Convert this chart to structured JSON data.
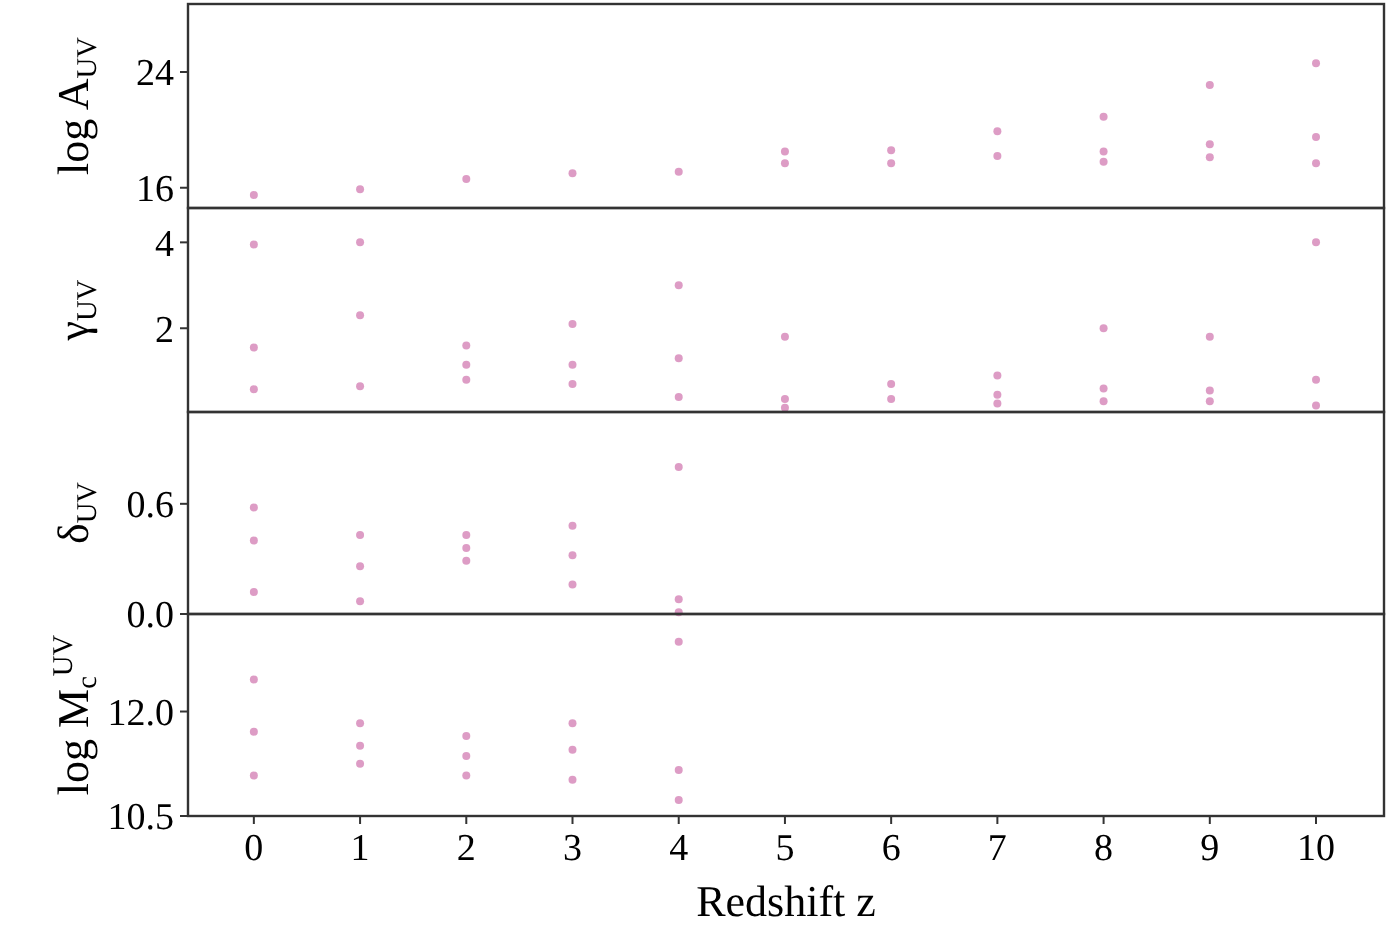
{
  "chart_data": [
    {
      "type": "scatter",
      "ylabel": "log A$_{UV}$",
      "xlim": [
        -0.62,
        10.64
      ],
      "ylim": [
        14.6,
        28.7
      ],
      "yticks": [
        16,
        24
      ],
      "tick_labels": "y",
      "grid": false,
      "marker": "circle",
      "series": [
        {
          "color": "#cf72ad",
          "x": [
            0,
            1,
            2,
            3,
            4,
            5,
            5,
            6,
            6,
            7,
            7,
            8,
            8,
            8,
            9,
            9,
            9,
            10,
            10,
            10
          ],
          "values": [
            15.5,
            15.9,
            16.6,
            17.0,
            17.1,
            17.7,
            18.5,
            17.7,
            18.6,
            18.2,
            19.9,
            17.8,
            18.5,
            20.9,
            18.1,
            19.0,
            23.1,
            17.7,
            19.5,
            24.6
          ]
        }
      ]
    },
    {
      "type": "scatter",
      "ylabel": "γ$_{UV}$",
      "xlim": [
        -0.62,
        10.64
      ],
      "ylim": [
        0.05,
        4.8
      ],
      "yticks": [
        2,
        4
      ],
      "tick_labels": "y",
      "grid": false,
      "marker": "circle",
      "series": [
        {
          "color": "#cf72ad",
          "x": [
            0,
            0,
            0,
            1,
            1,
            1,
            2,
            2,
            2,
            3,
            3,
            3,
            4,
            4,
            4,
            5,
            5,
            5,
            6,
            6,
            7,
            7,
            7,
            8,
            8,
            8,
            9,
            9,
            9,
            10,
            10,
            10
          ],
          "values": [
            0.58,
            1.55,
            3.95,
            0.65,
            2.3,
            4.0,
            0.8,
            1.15,
            1.6,
            0.7,
            1.15,
            2.1,
            0.4,
            1.3,
            3.0,
            0.15,
            0.35,
            1.8,
            0.35,
            0.7,
            0.25,
            0.45,
            0.9,
            0.3,
            0.6,
            2.0,
            0.3,
            0.55,
            1.8,
            0.2,
            0.8,
            4.0
          ]
        }
      ]
    },
    {
      "type": "scatter",
      "ylabel": "δ$_{UV}$",
      "xlim": [
        -0.62,
        10.64
      ],
      "ylim": [
        0,
        1.1
      ],
      "yticks": [
        {
          "value": 0,
          "label": "0.0"
        },
        0.6
      ],
      "tick_labels": "y",
      "grid": false,
      "marker": "circle",
      "series": [
        {
          "color": "#cf72ad",
          "x": [
            0,
            0,
            0,
            1,
            1,
            1,
            2,
            2,
            2,
            3,
            3,
            3,
            4,
            4,
            4
          ],
          "values": [
            0.12,
            0.4,
            0.58,
            0.07,
            0.26,
            0.43,
            0.29,
            0.36,
            0.43,
            0.16,
            0.32,
            0.48,
            0.01,
            0.08,
            0.8
          ]
        }
      ]
    },
    {
      "type": "scatter",
      "xlabel": "Redshift z",
      "ylabel": "log M$_{c}$$^{UV}$",
      "xlim": [
        -0.62,
        10.64
      ],
      "xticks": [
        0,
        1,
        2,
        3,
        4,
        5,
        6,
        7,
        8,
        9,
        10
      ],
      "ylim": [
        10.5,
        13.4
      ],
      "yticks": [
        10.5,
        {
          "value": 12,
          "label": "12.0"
        }
      ],
      "grid": false,
      "marker": "circle",
      "series": [
        {
          "color": "#cf72ad",
          "x": [
            0,
            0,
            0,
            1,
            1,
            1,
            2,
            2,
            2,
            3,
            3,
            3,
            4,
            4,
            4
          ],
          "values": [
            11.08,
            11.71,
            12.46,
            11.25,
            11.51,
            11.83,
            11.08,
            11.36,
            11.65,
            11.02,
            11.45,
            11.83,
            10.73,
            11.16,
            13.0
          ]
        }
      ]
    }
  ]
}
